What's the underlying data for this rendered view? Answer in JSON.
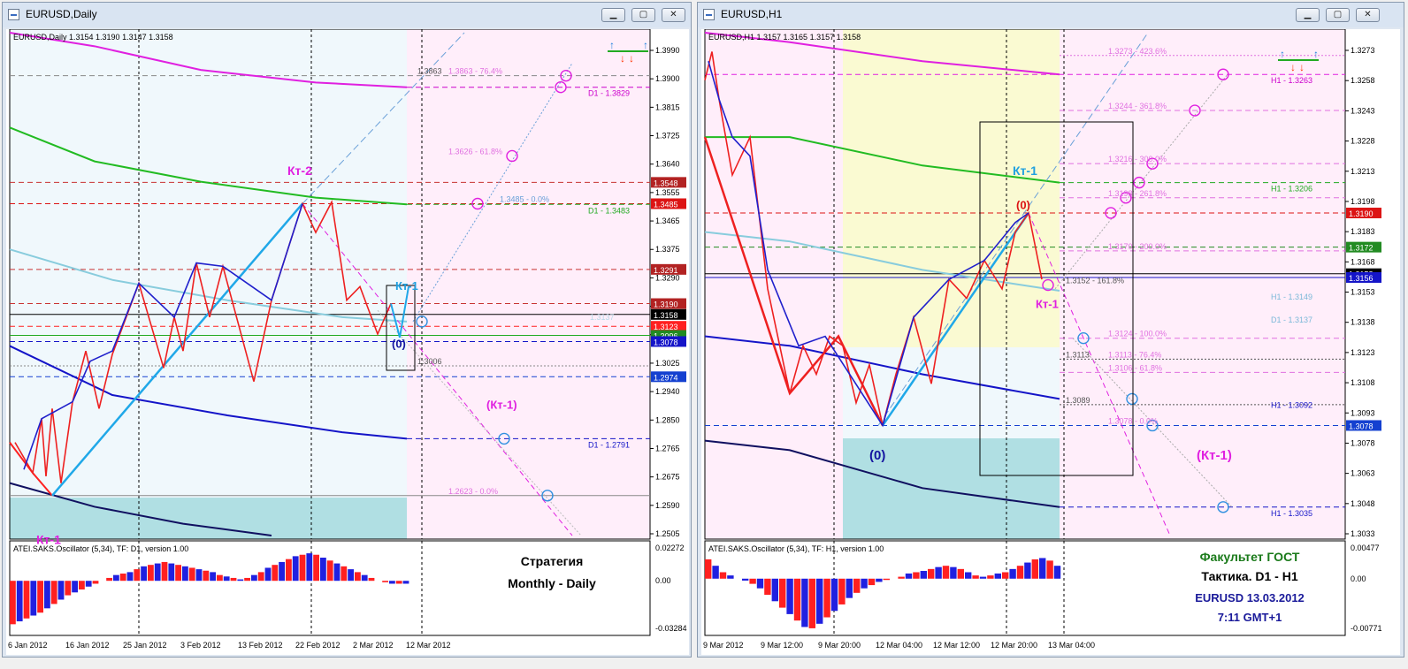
{
  "windows": [
    {
      "title": "EURUSD,Daily",
      "header": "EURUSD,Daily  1.3154 1.3190 1.3147 1.3158",
      "price_axis": {
        "min": 1.2505,
        "max": 1.399
      },
      "price_ticks": [
        "1.3990",
        "1.3900",
        "1.3815",
        "1.3725",
        "1.3640",
        "1.3555",
        "1.3465",
        "1.3375",
        "1.3290",
        "1.3205",
        "1.3115",
        "1.3025",
        "1.2940",
        "1.2850",
        "1.2765",
        "1.2675",
        "1.2590",
        "1.2505"
      ],
      "price_tags": [
        {
          "label": "1.3548",
          "value": 1.3548,
          "color": "#b22222"
        },
        {
          "label": "1.3485",
          "value": 1.3485,
          "color": "#dc1414"
        },
        {
          "label": "1.3291",
          "value": 1.3291,
          "color": "#b22222"
        },
        {
          "label": "1.3190",
          "value": 1.319,
          "color": "#b22222"
        },
        {
          "label": "1.3158",
          "value": 1.3158,
          "color": "#000000"
        },
        {
          "label": "1.3123",
          "value": 1.3123,
          "color": "#ff2020"
        },
        {
          "label": "1.3096",
          "value": 1.3096,
          "color": "#228b22"
        },
        {
          "label": "1.3078",
          "value": 1.3078,
          "color": "#1414c8"
        },
        {
          "label": "1.2974",
          "value": 1.2974,
          "color": "#1440d0"
        }
      ],
      "time_labels": [
        "6 Jan 2012",
        "16 Jan 2012",
        "25 Jan 2012",
        "3 Feb 2012",
        "13 Feb 2012",
        "22 Feb 2012",
        "2 Mar 2012",
        "12 Mar 2012"
      ],
      "fib_labels": [
        {
          "text": "1.3863",
          "value": 1.3863,
          "color": "#555555"
        },
        {
          "text": "1.3863 - 76.4%",
          "value": 1.3863,
          "color": "#e070e0"
        },
        {
          "text": "1.3626 - 61.8%",
          "value": 1.3626,
          "color": "#e070e0"
        },
        {
          "text": "1.3485 - 0.0%",
          "value": 1.3485,
          "color": "#6aa0d8"
        },
        {
          "text": "1.3006",
          "value": 1.3006,
          "color": "#555555"
        },
        {
          "text": "1.2623 - 0.0%",
          "value": 1.2623,
          "color": "#e070e0"
        },
        {
          "text": "1.3137",
          "value": 1.3137,
          "color": "#b8d8e8"
        }
      ],
      "ma_labels": [
        {
          "text": "D1 - 1.3829",
          "value": 1.3829,
          "color": "#cc00cc"
        },
        {
          "text": "D1 - 1.3483",
          "value": 1.3483,
          "color": "#22aa22"
        },
        {
          "text": "D1 - 1.2791",
          "value": 1.2791,
          "color": "#1414c8"
        }
      ],
      "annotations": [
        {
          "text": "Кт-2",
          "color": "#e020e0"
        },
        {
          "text": "Кт-1",
          "color": "#20a0e0"
        },
        {
          "text": "(0)",
          "color": "#1414a0"
        },
        {
          "text": "(Кт-1)",
          "color": "#e020e0"
        },
        {
          "text": "Кт-1",
          "color": "#e020e0"
        }
      ],
      "oscillator": {
        "header": "ATEI.SAKS.Oscillator (5,34), TF: D1,  version 1.00",
        "ticks": [
          "0.02272",
          "0.00",
          "-0.03284"
        ],
        "min": -0.03284,
        "max": 0.02272
      },
      "caption": [
        "Стратегия",
        "Monthly - Daily"
      ]
    },
    {
      "title": "EURUSD,H1",
      "header": "EURUSD,H1  1.3157 1.3165 1.3157 1.3158",
      "price_axis": {
        "min": 1.302,
        "max": 1.3285
      },
      "price_ticks": [
        "1.3273",
        "1.3258",
        "1.3243",
        "1.3228",
        "1.3213",
        "1.3198",
        "1.3183",
        "1.3168",
        "1.3153",
        "1.3138",
        "1.3123",
        "1.3108",
        "1.3093",
        "1.3078",
        "1.3063",
        "1.3048",
        "1.3033"
      ],
      "price_tags": [
        {
          "label": "1.3190",
          "value": 1.319,
          "color": "#dc1414"
        },
        {
          "label": "1.3172",
          "value": 1.3172,
          "color": "#228b22"
        },
        {
          "label": "1.3158",
          "value": 1.3158,
          "color": "#000000"
        },
        {
          "label": "1.3156",
          "value": 1.3156,
          "color": "#1414c8"
        },
        {
          "label": "1.3078",
          "value": 1.3078,
          "color": "#1440d0"
        }
      ],
      "time_labels": [
        "9 Mar 2012",
        "9 Mar 12:00",
        "9 Mar 20:00",
        "12 Mar 04:00",
        "12 Mar 12:00",
        "12 Mar 20:00",
        "13 Mar 04:00"
      ],
      "fib_labels": [
        {
          "text": "1.3273 - 423.6%",
          "value": 1.3273,
          "color": "#e070e0"
        },
        {
          "text": "1.3244 - 361.8%",
          "value": 1.3244,
          "color": "#e070e0"
        },
        {
          "text": "1.3216 - 300.0%",
          "value": 1.3216,
          "color": "#e070e0"
        },
        {
          "text": "1.3198 - 261.8%",
          "value": 1.3198,
          "color": "#e070e0"
        },
        {
          "text": "1.3170 - 200.0%",
          "value": 1.317,
          "color": "#e070e0"
        },
        {
          "text": "1.3152 - 161.8%",
          "value": 1.3152,
          "color": "#555555"
        },
        {
          "text": "1.3124 - 100.0%",
          "value": 1.3124,
          "color": "#e070e0"
        },
        {
          "text": "1.3113",
          "value": 1.3113,
          "color": "#555555"
        },
        {
          "text": "1.3113 - 76.4%",
          "value": 1.3113,
          "color": "#e070e0"
        },
        {
          "text": "1.3106 - 61.8%",
          "value": 1.3106,
          "color": "#e070e0"
        },
        {
          "text": "1.3089",
          "value": 1.3089,
          "color": "#555555"
        },
        {
          "text": "1.3078 - 0.0%",
          "value": 1.3078,
          "color": "#e070e0"
        }
      ],
      "ma_labels": [
        {
          "text": "H1 - 1.3263",
          "value": 1.3263,
          "color": "#cc00cc"
        },
        {
          "text": "H1 - 1.3206",
          "value": 1.3206,
          "color": "#22aa22"
        },
        {
          "text": "H1 - 1.3149",
          "value": 1.3149,
          "color": "#7ab8d8"
        },
        {
          "text": "D1 - 1.3137",
          "value": 1.3137,
          "color": "#7ab8d8"
        },
        {
          "text": "H1 - 1.3092",
          "value": 1.3092,
          "color": "#1414c8"
        },
        {
          "text": "H1 - 1.3035",
          "value": 1.3035,
          "color": "#1414c8"
        }
      ],
      "annotations": [
        {
          "text": "Кт-1",
          "color": "#20a0e0"
        },
        {
          "text": "(0)",
          "color": "#dc1414"
        },
        {
          "text": "Кт-1",
          "color": "#e020e0"
        },
        {
          "text": "(0)",
          "color": "#1414a0"
        },
        {
          "text": "(Кт-1)",
          "color": "#e020e0"
        }
      ],
      "oscillator": {
        "header": "ATEI.SAKS.Oscillator (5,34), TF: H1,  version 1.00",
        "ticks": [
          "0.00477",
          "0.00",
          "-0.00771"
        ],
        "min": -0.00771,
        "max": 0.00477
      },
      "caption": [
        "Факультет ГОСТ",
        "Тактика. D1 - H1",
        "EURUSD 13.03.2012",
        "7:11 GMT+1"
      ]
    }
  ],
  "colors": {
    "bg_light_blue": "#f0f8fc",
    "bg_pink": "#ffeefa",
    "bg_yellow": "#fafad2",
    "bg_teal": "#b0dfe3"
  }
}
